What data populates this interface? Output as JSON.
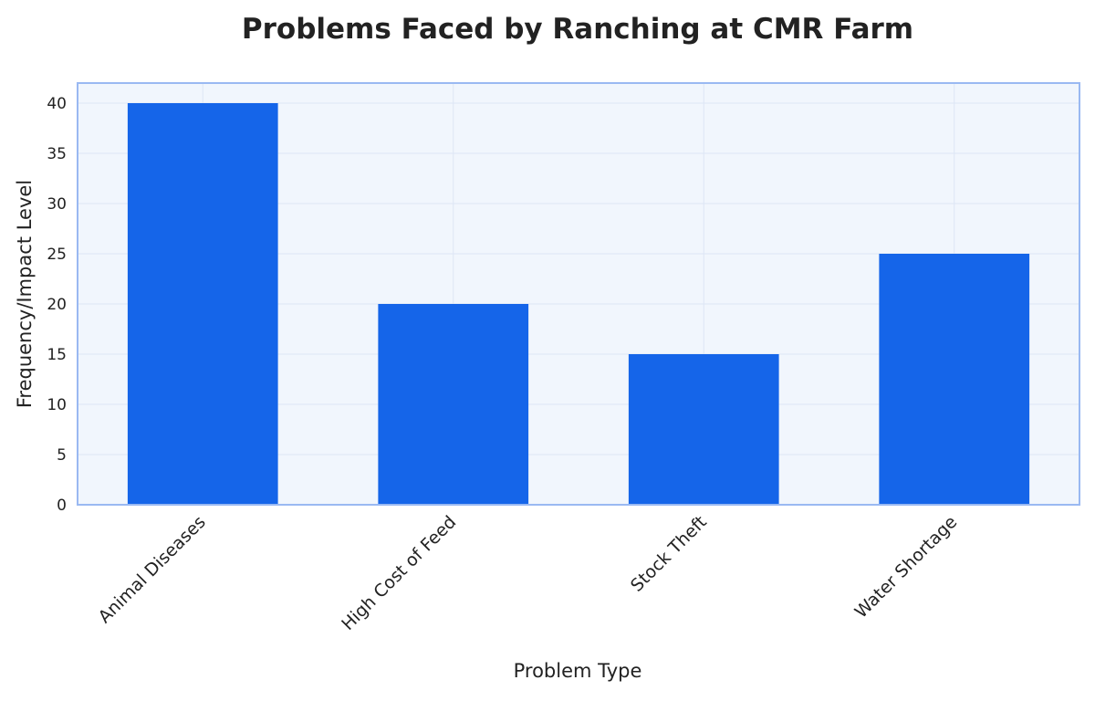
{
  "chart_data": {
    "type": "bar",
    "title": "Problems Faced by Ranching at CMR Farm",
    "xlabel": "Problem Type",
    "ylabel": "Frequency/Impact Level",
    "categories": [
      "Animal Diseases",
      "High Cost of Feed",
      "Stock Theft",
      "Water Shortage"
    ],
    "values": [
      40,
      20,
      15,
      25
    ],
    "ylim": [
      0,
      42
    ],
    "yticks": [
      0,
      5,
      10,
      15,
      20,
      25,
      30,
      35,
      40
    ],
    "grid": true,
    "legend": "none",
    "colors": {
      "bar": "#1565e9",
      "plot_background": "#f1f6fd",
      "plot_border": "#9ab9f2",
      "grid": "#dde6f5"
    }
  }
}
